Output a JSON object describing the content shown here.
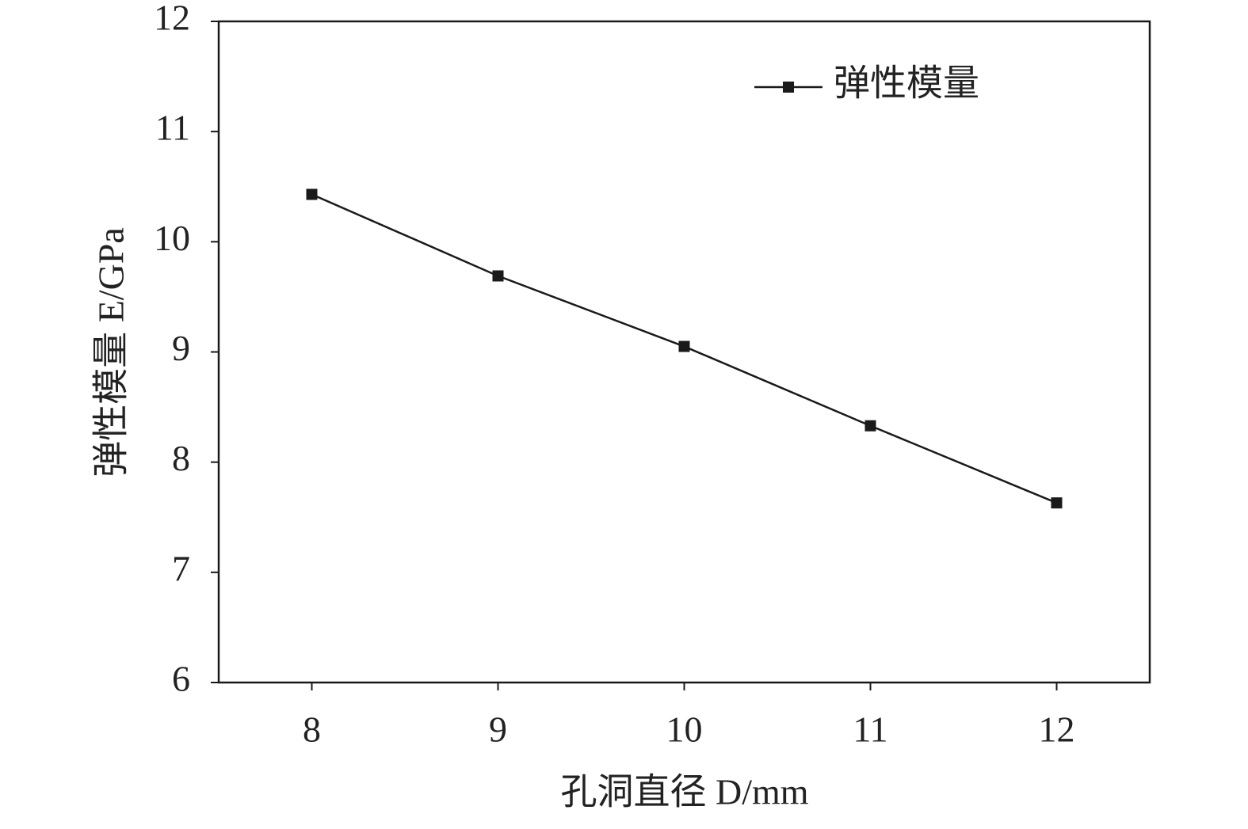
{
  "chart_data": {
    "type": "line",
    "x_label": "孔洞直径 D/mm",
    "y_label": "弹性模量 E/GPa",
    "x": [
      8,
      9,
      10,
      11,
      12
    ],
    "series": [
      {
        "name": "弹性模量",
        "color": "#1a1a1a",
        "values": [
          10.43,
          9.69,
          9.05,
          8.33,
          7.63
        ]
      }
    ],
    "xlim": [
      7.5,
      12.5
    ],
    "xticks": [
      8,
      9,
      10,
      11,
      12
    ],
    "ylim": [
      6,
      12
    ],
    "yticks": [
      6,
      7,
      8,
      9,
      10,
      11,
      12
    ],
    "legend": "upper right",
    "grid": false
  }
}
